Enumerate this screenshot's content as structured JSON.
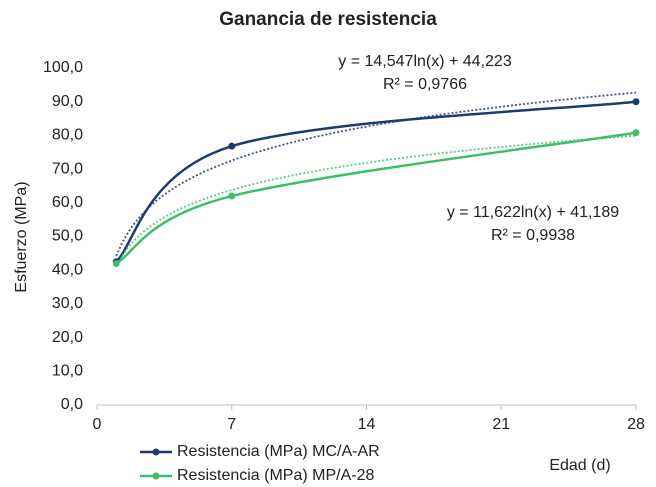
{
  "chart_data": {
    "type": "line",
    "title": "Ganancia de resistencia",
    "x_label": "Edad (d)",
    "y_label": "Esfuerzo (MPa)",
    "x": [
      1,
      7,
      28
    ],
    "series": [
      {
        "name": "Resistencia (MPa) MC/A-AR",
        "color": "#1f3a6e",
        "values": [
          42.5,
          76.8,
          90.0
        ],
        "trendline": {
          "slope": 14.547,
          "intercept": 44.223,
          "equation": "y = 14,547ln(x) + 44,223",
          "r2": 0.9766,
          "r2_label": "R² = 0,9766"
        }
      },
      {
        "name": "Resistencia (MPa) MP/A-28",
        "color": "#3dbf6a",
        "values": [
          42.0,
          62.0,
          80.8
        ],
        "trendline": {
          "slope": 11.622,
          "intercept": 41.189,
          "equation": "y = 11,622ln(x) + 41,189",
          "r2": 0.9938,
          "r2_label": "R² = 0,9938"
        }
      }
    ],
    "xlim": [
      0,
      28
    ],
    "xticks": [
      0,
      7,
      14,
      21,
      28
    ],
    "ylim": [
      0,
      100
    ],
    "yticks": [
      {
        "value": 0,
        "label": "0,0"
      },
      {
        "value": 10,
        "label": "10,0"
      },
      {
        "value": 20,
        "label": "20,0"
      },
      {
        "value": 30,
        "label": "30,0"
      },
      {
        "value": 40,
        "label": "40,0"
      },
      {
        "value": 50,
        "label": "50,0"
      },
      {
        "value": 60,
        "label": "60,0"
      },
      {
        "value": 70,
        "label": "70,0"
      },
      {
        "value": 80,
        "label": "80,0"
      },
      {
        "value": 90,
        "label": "90,0"
      },
      {
        "value": 100,
        "label": "100,0"
      }
    ],
    "grid": false,
    "legend": "bottom-left"
  }
}
